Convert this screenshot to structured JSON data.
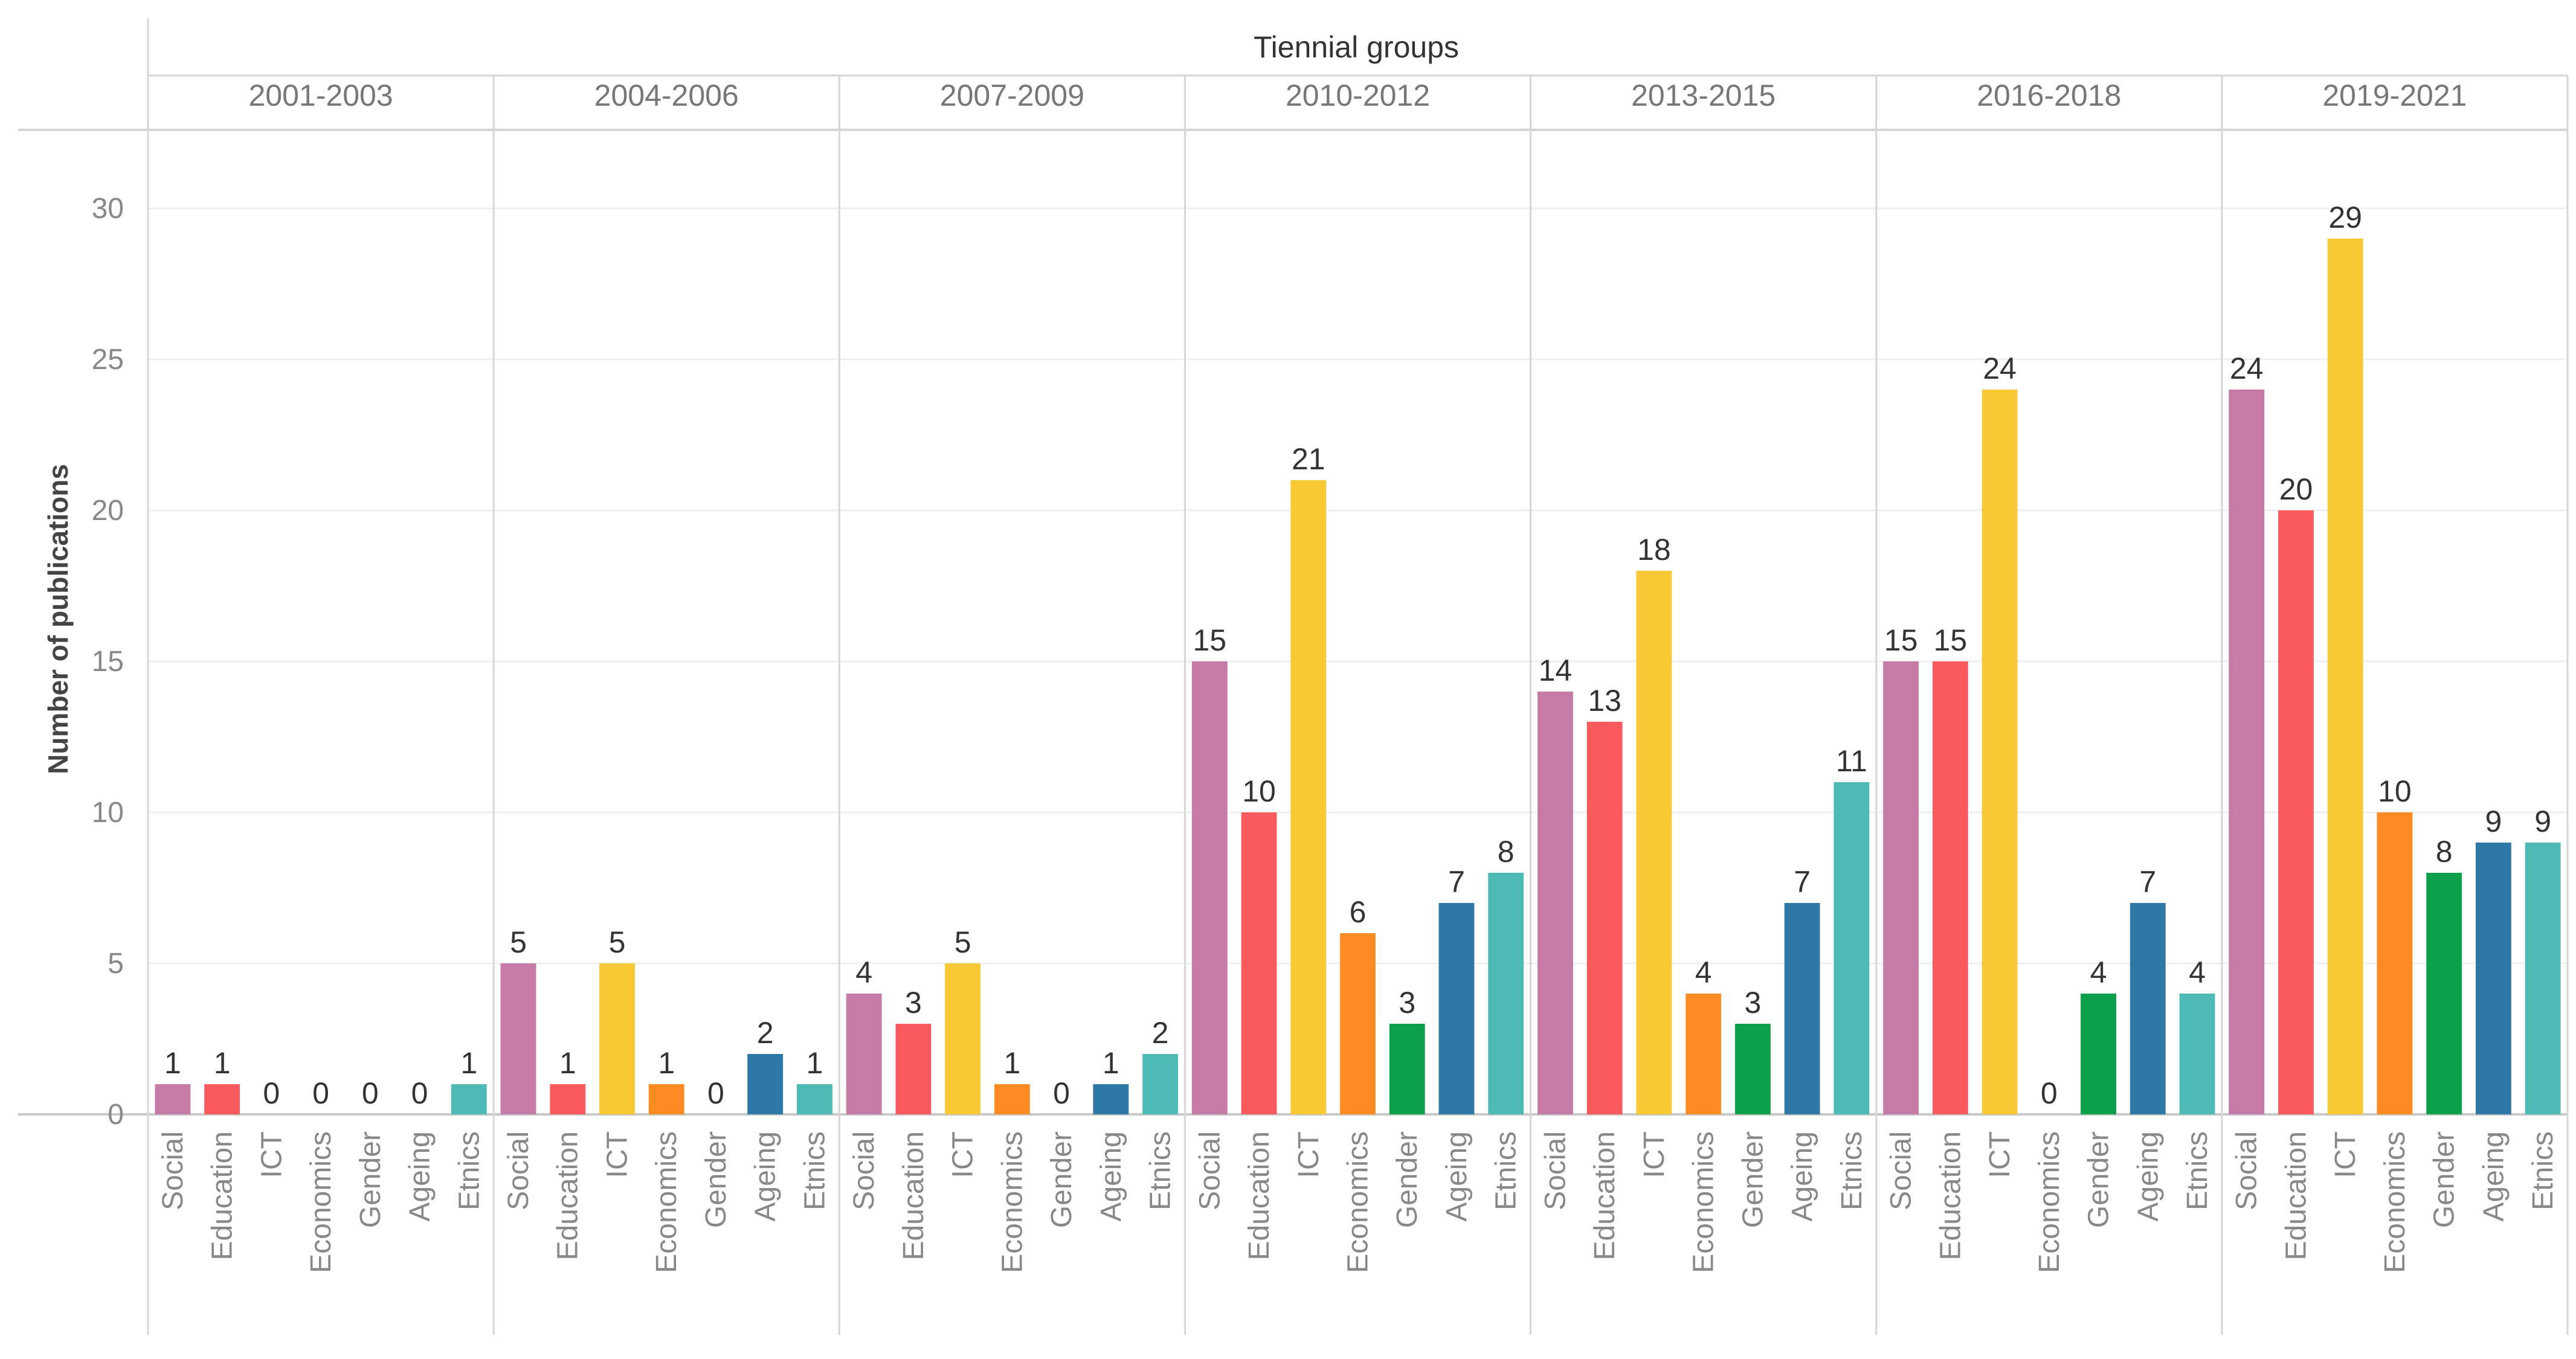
{
  "chart_data": {
    "type": "bar",
    "title": "Tiennial groups",
    "xlabel": "",
    "ylabel": "Number of publications",
    "ylim": [
      0,
      32
    ],
    "yticks": [
      0,
      5,
      10,
      15,
      20,
      25,
      30
    ],
    "grid": true,
    "categories": [
      "Social",
      "Education",
      "ICT",
      "Economics",
      "Gender",
      "Ageing",
      "Etnics"
    ],
    "colors": {
      "Social": "#c57ba5",
      "Education": "#f95a5d",
      "ICT": "#f8c934",
      "Economics": "#fb8b22",
      "Gender": "#0ca04b",
      "Ageing": "#2d78a6",
      "Etnics": "#4ebab5"
    },
    "groups": [
      {
        "name": "2001-2003",
        "values": [
          1,
          1,
          0,
          0,
          0,
          0,
          1
        ]
      },
      {
        "name": "2004-2006",
        "values": [
          5,
          1,
          5,
          1,
          0,
          2,
          1
        ]
      },
      {
        "name": "2007-2009",
        "values": [
          4,
          3,
          5,
          1,
          0,
          1,
          2
        ]
      },
      {
        "name": "2010-2012",
        "values": [
          15,
          10,
          21,
          6,
          3,
          7,
          8
        ]
      },
      {
        "name": "2013-2015",
        "values": [
          14,
          13,
          18,
          4,
          3,
          7,
          11
        ]
      },
      {
        "name": "2016-2018",
        "values": [
          15,
          15,
          24,
          0,
          4,
          7,
          4
        ]
      },
      {
        "name": "2019-2021",
        "values": [
          24,
          20,
          29,
          10,
          8,
          9,
          9
        ]
      }
    ]
  }
}
